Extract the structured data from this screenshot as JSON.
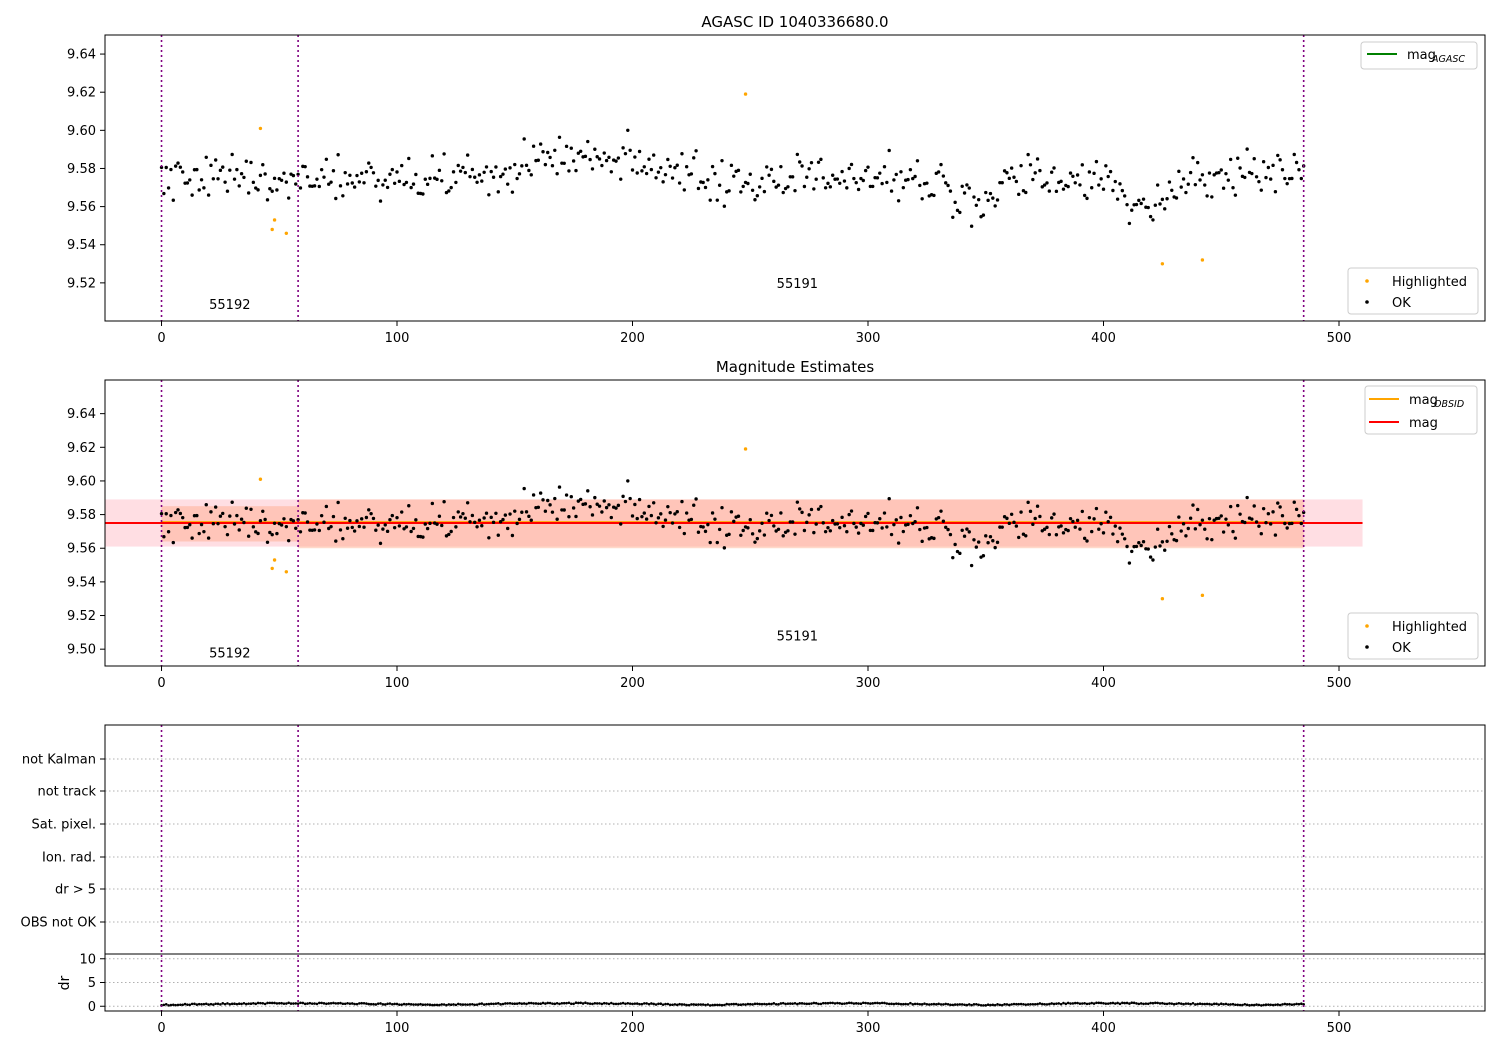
{
  "chart_data": [
    {
      "type": "scatter",
      "title": "AGASC ID 1040336680.0",
      "xlabel": "",
      "ylabel": "",
      "xlim": [
        -24,
        562
      ],
      "ylim": [
        9.5,
        9.65
      ],
      "xticks": [
        0,
        100,
        200,
        300,
        400,
        500
      ],
      "yticks": [
        9.52,
        9.54,
        9.56,
        9.58,
        9.6,
        9.62,
        9.64
      ],
      "ytick_labels": [
        "9.52",
        "9.54",
        "9.56",
        "9.58",
        "9.60",
        "9.62",
        "9.64"
      ],
      "grid": false,
      "obs_boundaries": [
        0,
        58,
        485
      ],
      "obs_labels": [
        {
          "x": 29,
          "y": 9.509,
          "text": "55192"
        },
        {
          "x": 270,
          "y": 9.52,
          "text": "55191"
        }
      ],
      "legend_lines": [
        {
          "label": "mag",
          "sub": "AGASC",
          "color": "#008000"
        }
      ],
      "legend_markers": [
        {
          "label": "Highlighted",
          "color": "#ffa500"
        },
        {
          "label": "OK",
          "color": "#000000"
        }
      ],
      "series": [
        {
          "name": "OK",
          "color": "#000000",
          "n": 486,
          "mean": 9.575,
          "noise": 0.012
        },
        {
          "name": "Highlighted",
          "color": "#ffa500",
          "x": [
            42,
            47,
            48,
            53,
            248,
            425,
            442
          ],
          "y": [
            9.601,
            9.548,
            9.553,
            9.546,
            9.619,
            9.53,
            9.532
          ]
        }
      ]
    },
    {
      "type": "scatter",
      "title": "Magnitude Estimates",
      "xlabel": "",
      "ylabel": "",
      "xlim": [
        -24,
        562
      ],
      "ylim": [
        9.49,
        9.66
      ],
      "xticks": [
        0,
        100,
        200,
        300,
        400,
        500
      ],
      "yticks": [
        9.5,
        9.52,
        9.54,
        9.56,
        9.58,
        9.6,
        9.62,
        9.64
      ],
      "ytick_labels": [
        "9.50",
        "9.52",
        "9.54",
        "9.56",
        "9.58",
        "9.60",
        "9.62",
        "9.64"
      ],
      "grid": false,
      "obs_boundaries": [
        0,
        58,
        485
      ],
      "obs_labels": [
        {
          "x": 29,
          "y": 9.498,
          "text": "55192"
        },
        {
          "x": 270,
          "y": 9.508,
          "text": "55191"
        }
      ],
      "bands": [
        {
          "x0": -24,
          "x1": 510,
          "y0": 9.561,
          "y1": 9.589,
          "color": "#ffb6c1",
          "opacity": 0.45
        },
        {
          "x0": 0,
          "x1": 58,
          "y0": 9.564,
          "y1": 9.585,
          "color": "#ffa07a",
          "opacity": 0.4
        },
        {
          "x0": 58,
          "x1": 485,
          "y0": 9.56,
          "y1": 9.589,
          "color": "#ffa07a",
          "opacity": 0.4
        }
      ],
      "hlines": [
        {
          "label": "mag",
          "sub": "OBSID",
          "color": "#ffa500",
          "y": 9.5755,
          "x0": 0,
          "x1": 485
        },
        {
          "label": "mag",
          "sub": "",
          "color": "#ff0000",
          "y": 9.575,
          "x0": -24,
          "x1": 510
        }
      ],
      "legend_markers": [
        {
          "label": "Highlighted",
          "color": "#ffa500"
        },
        {
          "label": "OK",
          "color": "#000000"
        }
      ]
    },
    {
      "type": "scatter",
      "title": "",
      "flag_labels": [
        "not Kalman",
        "not track",
        "Sat. pixel.",
        "Ion. rad.",
        "dr > 5",
        "OBS not OK"
      ],
      "flags_set": [],
      "dr": {
        "ylabel": "dr",
        "ylim": [
          -1,
          11
        ],
        "yticks": [
          0,
          5,
          10
        ],
        "ytick_labels": [
          "0",
          "5",
          "10"
        ],
        "n": 486
      },
      "xlim": [
        -24,
        562
      ],
      "xticks": [
        0,
        100,
        200,
        300,
        400,
        500
      ],
      "obs_boundaries": [
        0,
        58,
        485
      ]
    }
  ]
}
